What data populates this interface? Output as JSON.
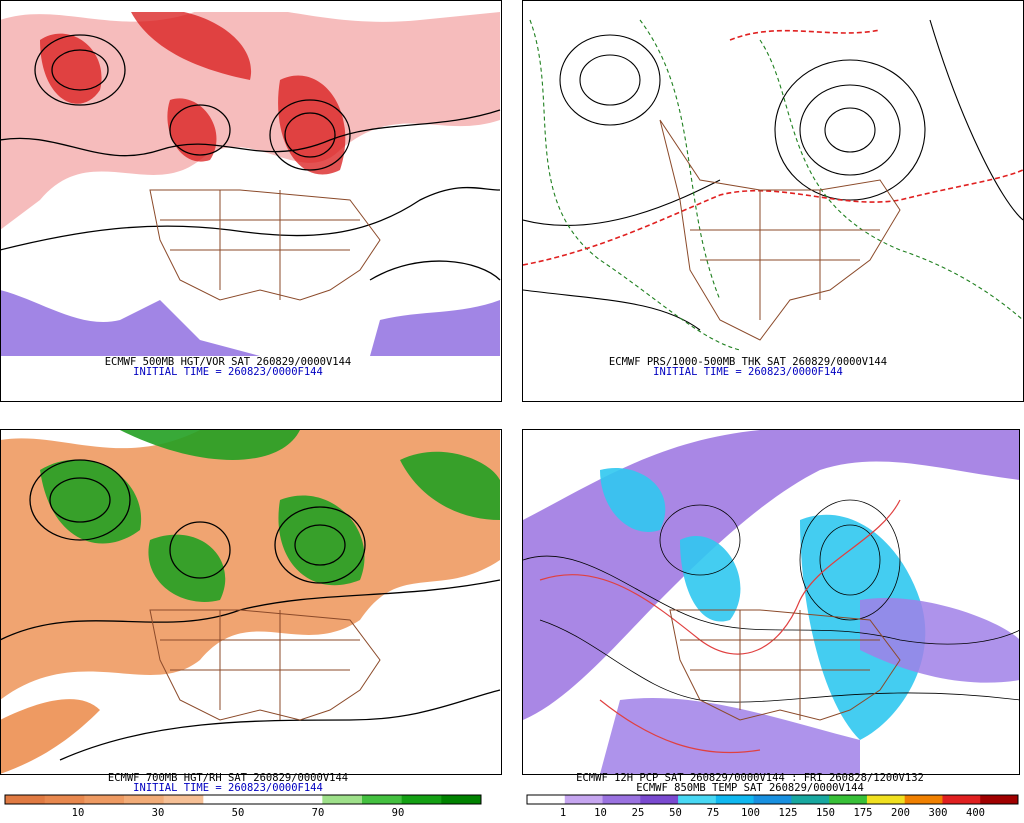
{
  "panels": [
    {
      "title": "ECMWF 500MB HGT/VOR SAT 260829/0000V144",
      "initial_time": "INITIAL TIME = 260823/0000F144"
    },
    {
      "title": "ECMWF PRS/1000-500MB THK SAT 260829/0000V144",
      "initial_time": "INITIAL TIME = 260823/0000F144"
    },
    {
      "title": "ECMWF 700MB HGT/RH SAT 260829/0000V144",
      "initial_time": "INITIAL TIME = 260823/0000F144",
      "colorbar": {
        "labels": [
          10,
          30,
          50,
          70,
          90
        ],
        "colors": [
          "#e07a42",
          "#e8884e",
          "#ee9a62",
          "#f2ac78",
          "#f6c096",
          "#ffffff",
          "#ffffff",
          "#ffffff",
          "#9ee08a",
          "#44c040",
          "#14a014",
          "#008200"
        ]
      }
    },
    {
      "title": "ECMWF 12H PCP SAT 260829/0000V144 : FRI 260828/1200V132",
      "subtitle": "ECMWF 850MB TEMP SAT 260829/0000V144",
      "colorbar": {
        "labels": [
          1,
          10,
          25,
          50,
          75,
          100,
          125,
          150,
          175,
          200,
          300,
          400
        ],
        "colors": [
          "#ffffff",
          "#c6a6f0",
          "#9a72e0",
          "#7a4ad0",
          "#48d8f4",
          "#10b8f0",
          "#1890e0",
          "#18a8a0",
          "#38c038",
          "#f0e020",
          "#f08000",
          "#e02020",
          "#a00000"
        ]
      }
    }
  ]
}
